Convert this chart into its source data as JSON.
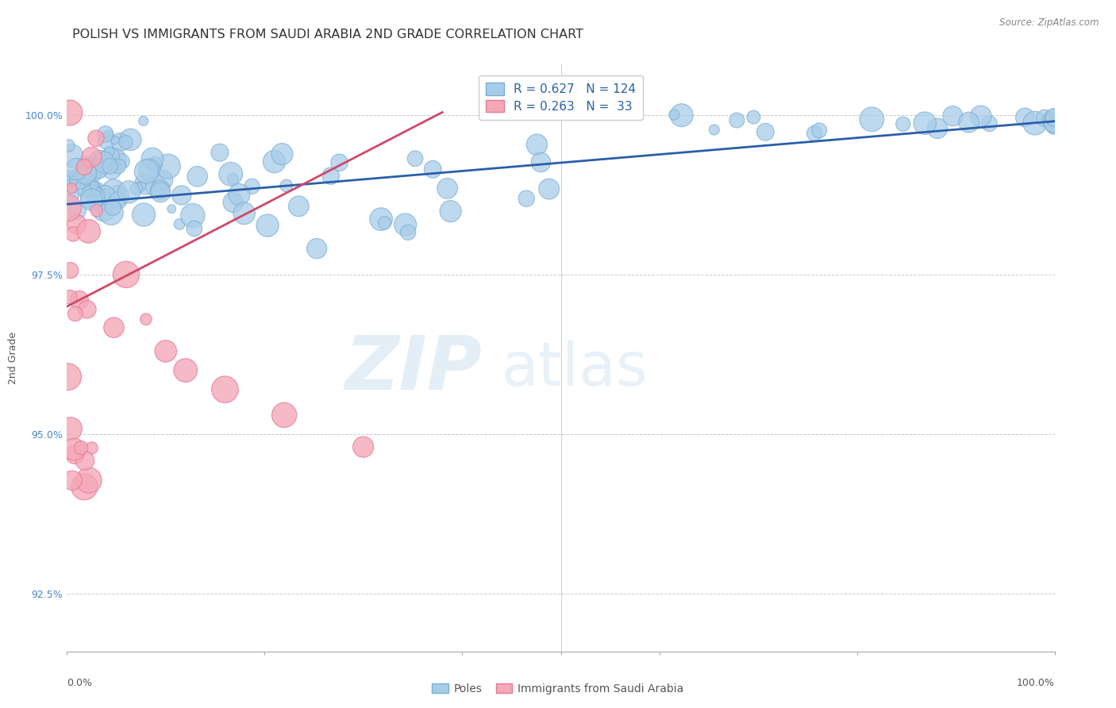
{
  "title": "POLISH VS IMMIGRANTS FROM SAUDI ARABIA 2ND GRADE CORRELATION CHART",
  "source": "Source: ZipAtlas.com",
  "ylabel": "2nd Grade",
  "xlim": [
    0.0,
    1.0
  ],
  "ylim": [
    0.916,
    1.008
  ],
  "yticks": [
    0.925,
    0.95,
    0.975,
    1.0
  ],
  "ytick_labels": [
    "92.5%",
    "95.0%",
    "97.5%",
    "100.0%"
  ],
  "legend_blue_label": "Poles",
  "legend_pink_label": "Immigrants from Saudi Arabia",
  "blue_R": 0.627,
  "blue_N": 124,
  "pink_R": 0.263,
  "pink_N": 33,
  "blue_color": "#a8cce8",
  "pink_color": "#f4a8b8",
  "blue_edge_color": "#7aafd4",
  "pink_edge_color": "#e87898",
  "blue_line_color": "#2a5faa",
  "pink_line_color": "#d04868",
  "watermark_zip": "ZIP",
  "watermark_atlas": "atlas",
  "title_fontsize": 11.5,
  "axis_label_fontsize": 9,
  "tick_fontsize": 9,
  "source_fontsize": 8.5
}
